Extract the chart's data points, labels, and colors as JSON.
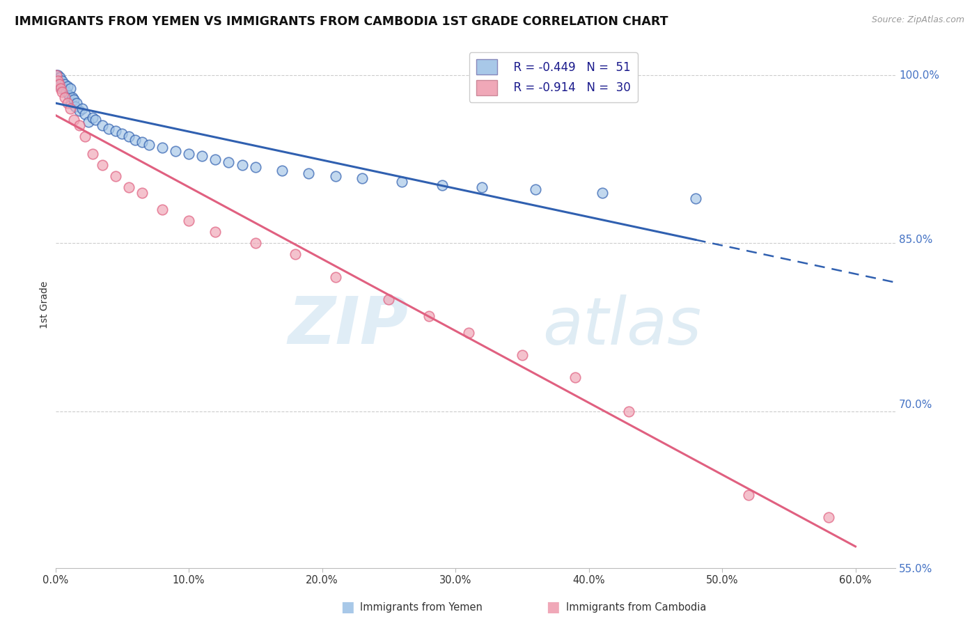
{
  "title": "IMMIGRANTS FROM YEMEN VS IMMIGRANTS FROM CAMBODIA 1ST GRADE CORRELATION CHART",
  "source": "Source: ZipAtlas.com",
  "ylabel": "1st Grade",
  "xlabel_vals": [
    0.0,
    10.0,
    20.0,
    30.0,
    40.0,
    50.0,
    60.0
  ],
  "ylabel_vals": [
    55.0,
    70.0,
    85.0,
    100.0
  ],
  "xmin": 0.0,
  "xmax": 63.0,
  "ymin": 56.0,
  "ymax": 103.0,
  "legend_blue_r": "R = -0.449",
  "legend_blue_n": "N =  51",
  "legend_pink_r": "R = -0.914",
  "legend_pink_n": "N =  30",
  "blue_color": "#a8c8e8",
  "pink_color": "#f0a8b8",
  "blue_line_color": "#3060b0",
  "pink_line_color": "#e06080",
  "watermark_zip": "ZIP",
  "watermark_atlas": "atlas",
  "title_fontsize": 12.5,
  "yemen_scatter_x": [
    0.1,
    0.15,
    0.2,
    0.25,
    0.3,
    0.35,
    0.4,
    0.5,
    0.6,
    0.7,
    0.8,
    0.9,
    1.0,
    1.1,
    1.2,
    1.3,
    1.4,
    1.5,
    1.6,
    1.8,
    2.0,
    2.2,
    2.5,
    2.8,
    3.0,
    3.5,
    4.0,
    4.5,
    5.0,
    5.5,
    6.0,
    6.5,
    7.0,
    8.0,
    9.0,
    10.0,
    11.0,
    12.0,
    13.0,
    14.0,
    15.0,
    17.0,
    19.0,
    21.0,
    23.0,
    26.0,
    29.0,
    32.0,
    36.0,
    41.0,
    48.0
  ],
  "yemen_scatter_y": [
    100.0,
    99.8,
    100.0,
    99.5,
    99.2,
    99.8,
    99.0,
    99.5,
    98.8,
    99.2,
    98.5,
    99.0,
    98.2,
    98.8,
    97.5,
    98.0,
    97.8,
    97.2,
    97.5,
    96.8,
    97.0,
    96.5,
    95.8,
    96.2,
    96.0,
    95.5,
    95.2,
    95.0,
    94.8,
    94.5,
    94.2,
    94.0,
    93.8,
    93.5,
    93.2,
    93.0,
    92.8,
    92.5,
    92.2,
    92.0,
    91.8,
    91.5,
    91.2,
    91.0,
    90.8,
    90.5,
    90.2,
    90.0,
    89.8,
    89.5,
    89.0
  ],
  "cambodia_scatter_x": [
    0.1,
    0.2,
    0.3,
    0.4,
    0.5,
    0.7,
    0.9,
    1.1,
    1.4,
    1.8,
    2.2,
    2.8,
    3.5,
    4.5,
    5.5,
    6.5,
    8.0,
    10.0,
    12.0,
    15.0,
    18.0,
    21.0,
    25.0,
    28.0,
    31.0,
    35.0,
    39.0,
    43.0,
    52.0,
    58.0
  ],
  "cambodia_scatter_y": [
    100.0,
    99.5,
    99.2,
    98.8,
    98.5,
    98.0,
    97.5,
    97.0,
    96.0,
    95.5,
    94.5,
    93.0,
    92.0,
    91.0,
    90.0,
    89.5,
    88.0,
    87.0,
    86.0,
    85.0,
    84.0,
    82.0,
    80.0,
    78.5,
    77.0,
    75.0,
    73.0,
    70.0,
    62.5,
    60.5
  ],
  "blue_line_x_solid_end": 48.0,
  "blue_line_x_start": 0.0,
  "blue_line_x_dash_end": 63.0
}
